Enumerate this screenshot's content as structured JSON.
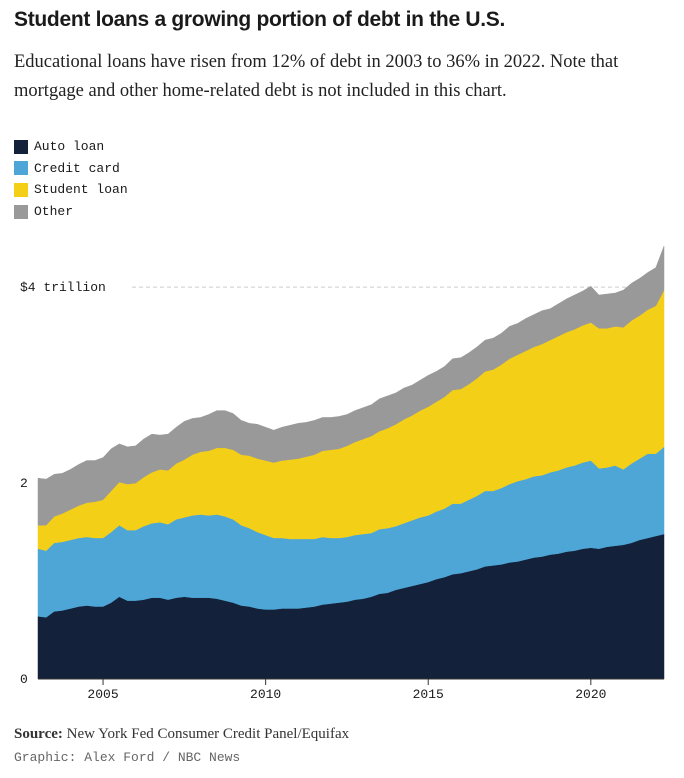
{
  "header": {
    "title": "Student loans a growing portion of debt in the U.S.",
    "subtitle": "Educational loans have risen from 12% of debt in 2003 to 36% in 2022. Note that mortgage and other home-related debt is not included in this chart."
  },
  "footer": {
    "source_label": "Source:",
    "source_text": "New York Fed Consumer Credit Panel/Equifax",
    "credit": "Graphic: Alex Ford / NBC News"
  },
  "chart_data": {
    "type": "area",
    "stacked": true,
    "title": "Student loans a growing portion of debt in the U.S.",
    "xlabel": "",
    "ylabel": "",
    "xlim": [
      2003.0,
      2022.25
    ],
    "ylim": [
      0,
      4.4
    ],
    "xticks": [
      2005,
      2010,
      2015,
      2020
    ],
    "xtick_labels": [
      "2005",
      "2010",
      "2015",
      "2020"
    ],
    "yticks": [
      0,
      2,
      4
    ],
    "ytick_labels": [
      "0",
      "2",
      "$4 trillion"
    ],
    "grid": false,
    "reference_line": {
      "y": 4,
      "style": "dashed"
    },
    "legend_position": "top-left",
    "x": [
      2003.0,
      2003.25,
      2003.5,
      2003.75,
      2004.0,
      2004.25,
      2004.5,
      2004.75,
      2005.0,
      2005.25,
      2005.5,
      2005.75,
      2006.0,
      2006.25,
      2006.5,
      2006.75,
      2007.0,
      2007.25,
      2007.5,
      2007.75,
      2008.0,
      2008.25,
      2008.5,
      2008.75,
      2009.0,
      2009.25,
      2009.5,
      2009.75,
      2010.0,
      2010.25,
      2010.5,
      2010.75,
      2011.0,
      2011.25,
      2011.5,
      2011.75,
      2012.0,
      2012.25,
      2012.5,
      2012.75,
      2013.0,
      2013.25,
      2013.5,
      2013.75,
      2014.0,
      2014.25,
      2014.5,
      2014.75,
      2015.0,
      2015.25,
      2015.5,
      2015.75,
      2016.0,
      2016.25,
      2016.5,
      2016.75,
      2017.0,
      2017.25,
      2017.5,
      2017.75,
      2018.0,
      2018.25,
      2018.5,
      2018.75,
      2019.0,
      2019.25,
      2019.5,
      2019.75,
      2020.0,
      2020.25,
      2020.5,
      2020.75,
      2021.0,
      2021.25,
      2021.5,
      2021.75,
      2022.0,
      2022.25
    ],
    "series": [
      {
        "name": "Auto loan",
        "color": "#13213a",
        "values": [
          0.64,
          0.63,
          0.69,
          0.7,
          0.72,
          0.74,
          0.75,
          0.74,
          0.74,
          0.78,
          0.84,
          0.8,
          0.8,
          0.81,
          0.83,
          0.83,
          0.81,
          0.83,
          0.84,
          0.83,
          0.83,
          0.83,
          0.82,
          0.8,
          0.78,
          0.75,
          0.74,
          0.72,
          0.71,
          0.71,
          0.72,
          0.72,
          0.72,
          0.73,
          0.74,
          0.76,
          0.77,
          0.78,
          0.79,
          0.81,
          0.82,
          0.84,
          0.87,
          0.88,
          0.91,
          0.93,
          0.95,
          0.97,
          0.99,
          1.02,
          1.04,
          1.07,
          1.08,
          1.1,
          1.12,
          1.15,
          1.16,
          1.17,
          1.19,
          1.2,
          1.22,
          1.24,
          1.25,
          1.27,
          1.28,
          1.3,
          1.31,
          1.33,
          1.34,
          1.33,
          1.35,
          1.36,
          1.37,
          1.39,
          1.42,
          1.44,
          1.46,
          1.48
        ]
      },
      {
        "name": "Credit card",
        "color": "#4ea6d6",
        "values": [
          0.69,
          0.68,
          0.7,
          0.7,
          0.7,
          0.7,
          0.7,
          0.7,
          0.7,
          0.72,
          0.73,
          0.72,
          0.72,
          0.75,
          0.76,
          0.77,
          0.77,
          0.8,
          0.81,
          0.84,
          0.85,
          0.84,
          0.86,
          0.86,
          0.85,
          0.82,
          0.8,
          0.78,
          0.76,
          0.73,
          0.72,
          0.71,
          0.71,
          0.7,
          0.69,
          0.69,
          0.67,
          0.66,
          0.66,
          0.66,
          0.66,
          0.65,
          0.66,
          0.66,
          0.65,
          0.66,
          0.67,
          0.68,
          0.68,
          0.69,
          0.7,
          0.72,
          0.71,
          0.73,
          0.75,
          0.77,
          0.76,
          0.78,
          0.8,
          0.82,
          0.82,
          0.83,
          0.83,
          0.84,
          0.85,
          0.86,
          0.87,
          0.88,
          0.89,
          0.82,
          0.81,
          0.82,
          0.77,
          0.81,
          0.83,
          0.86,
          0.84,
          0.89
        ]
      },
      {
        "name": "Student loan",
        "color": "#f4cf17",
        "values": [
          0.24,
          0.26,
          0.27,
          0.29,
          0.31,
          0.33,
          0.35,
          0.37,
          0.39,
          0.42,
          0.44,
          0.47,
          0.48,
          0.5,
          0.52,
          0.54,
          0.55,
          0.57,
          0.59,
          0.62,
          0.64,
          0.66,
          0.68,
          0.7,
          0.71,
          0.72,
          0.74,
          0.75,
          0.76,
          0.77,
          0.79,
          0.81,
          0.82,
          0.84,
          0.86,
          0.88,
          0.9,
          0.91,
          0.93,
          0.95,
          0.97,
          0.99,
          1.0,
          1.02,
          1.04,
          1.06,
          1.07,
          1.09,
          1.11,
          1.12,
          1.14,
          1.16,
          1.17,
          1.18,
          1.2,
          1.22,
          1.24,
          1.26,
          1.28,
          1.29,
          1.31,
          1.32,
          1.34,
          1.35,
          1.37,
          1.38,
          1.39,
          1.4,
          1.41,
          1.43,
          1.42,
          1.42,
          1.45,
          1.46,
          1.46,
          1.47,
          1.51,
          1.6
        ]
      },
      {
        "name": "Other",
        "color": "#999999",
        "values": [
          0.48,
          0.47,
          0.43,
          0.41,
          0.41,
          0.42,
          0.43,
          0.42,
          0.43,
          0.43,
          0.39,
          0.38,
          0.38,
          0.39,
          0.39,
          0.35,
          0.37,
          0.37,
          0.39,
          0.37,
          0.35,
          0.37,
          0.38,
          0.38,
          0.37,
          0.35,
          0.33,
          0.35,
          0.34,
          0.33,
          0.34,
          0.35,
          0.36,
          0.35,
          0.35,
          0.34,
          0.33,
          0.33,
          0.32,
          0.32,
          0.32,
          0.32,
          0.33,
          0.33,
          0.32,
          0.32,
          0.31,
          0.31,
          0.32,
          0.31,
          0.31,
          0.32,
          0.32,
          0.32,
          0.32,
          0.32,
          0.32,
          0.32,
          0.33,
          0.32,
          0.33,
          0.33,
          0.34,
          0.32,
          0.33,
          0.34,
          0.35,
          0.35,
          0.37,
          0.34,
          0.35,
          0.34,
          0.38,
          0.38,
          0.38,
          0.38,
          0.39,
          0.45
        ]
      }
    ]
  }
}
